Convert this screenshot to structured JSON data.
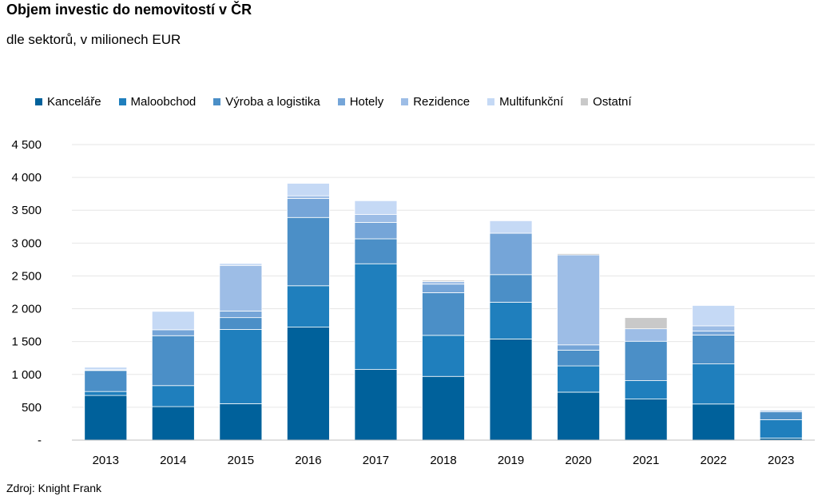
{
  "title": "Objem investic do nemovitostí v ČR",
  "subtitle": "dle sektorů, v milionech EUR",
  "source": "Zdroj: Knight Frank",
  "chart_data": {
    "type": "bar",
    "stacked": true,
    "title": "Objem investic do nemovitostí v ČR",
    "subtitle": "dle sektorů, v milionech EUR",
    "xlabel": "",
    "ylabel": "",
    "ylim": [
      0,
      4500
    ],
    "yticks": [
      0,
      500,
      1000,
      1500,
      2000,
      2500,
      3000,
      3500,
      4000,
      4500
    ],
    "ytick_labels": [
      "-",
      "500",
      "1 000",
      "1 500",
      "2 000",
      "2 500",
      "3 000",
      "3 500",
      "4 000",
      "4 500"
    ],
    "grid": true,
    "legend_position": "top",
    "categories": [
      "2013",
      "2014",
      "2015",
      "2016",
      "2017",
      "2018",
      "2019",
      "2020",
      "2021",
      "2022",
      "2023"
    ],
    "series": [
      {
        "name": "Kanceláře",
        "color": "#00619b",
        "values": [
          680,
          510,
          555,
          1720,
          1075,
          970,
          1540,
          730,
          625,
          550,
          30
        ]
      },
      {
        "name": "Maloobchod",
        "color": "#1f7fbd",
        "values": [
          60,
          320,
          1130,
          630,
          1610,
          625,
          560,
          400,
          280,
          610,
          280
        ]
      },
      {
        "name": "Výroba a logistika",
        "color": "#4b8fc7",
        "values": [
          320,
          760,
          180,
          1040,
          380,
          650,
          420,
          240,
          600,
          440,
          120
        ]
      },
      {
        "name": "Hotely",
        "color": "#75a5d8",
        "values": [
          10,
          90,
          100,
          290,
          250,
          130,
          630,
          80,
          0,
          60,
          20
        ]
      },
      {
        "name": "Rezidence",
        "color": "#9dbde6",
        "values": [
          0,
          0,
          695,
          40,
          120,
          40,
          0,
          1370,
          190,
          80,
          10
        ]
      },
      {
        "name": "Multifunkční",
        "color": "#c5d9f5",
        "values": [
          40,
          280,
          30,
          190,
          210,
          0,
          190,
          0,
          0,
          310,
          0
        ]
      },
      {
        "name": "Ostatní",
        "color": "#c9c9c9",
        "values": [
          0,
          0,
          0,
          0,
          0,
          20,
          0,
          20,
          170,
          0,
          0
        ]
      }
    ]
  }
}
